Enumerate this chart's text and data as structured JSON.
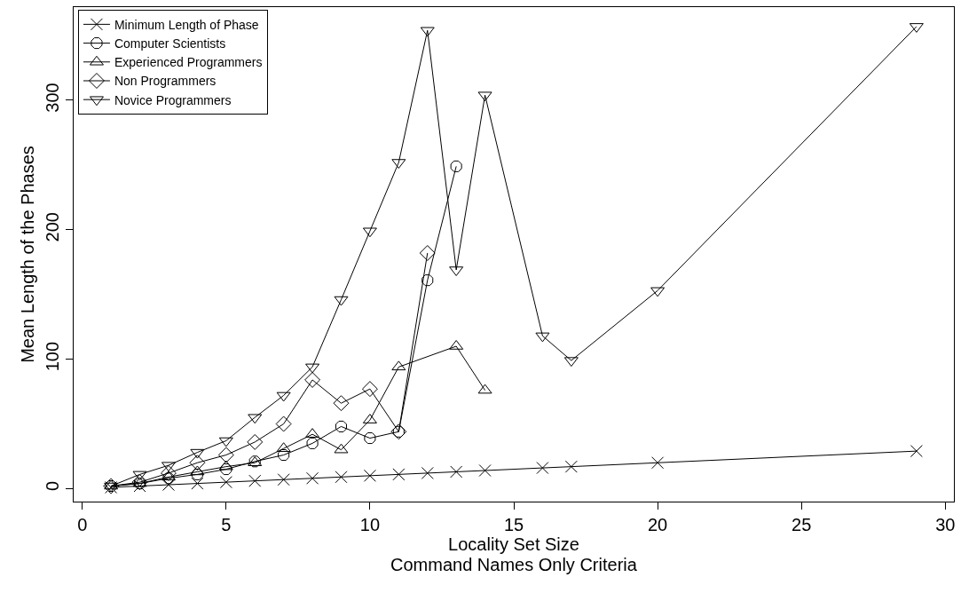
{
  "chart_data": {
    "type": "line",
    "xlabel": "Locality Set Size",
    "ylabel": "Mean Length of the Phases",
    "annotations": [
      "Command Names Only Criteria"
    ],
    "xlim": [
      -0.3,
      30.3
    ],
    "xticks": [
      0,
      5,
      10,
      15,
      20,
      25,
      30
    ],
    "ylim": [
      -10,
      372
    ],
    "yticks": [
      0,
      100,
      200,
      300
    ],
    "grid": false,
    "legend": "top left",
    "line_style": "solid",
    "series": [
      {
        "name": "Minimum Length of Phase",
        "color": "#000000",
        "marker": "cross",
        "x": [
          1,
          2,
          3,
          4,
          5,
          6,
          7,
          8,
          9,
          10,
          11,
          12,
          13,
          14,
          16,
          17,
          20,
          29
        ],
        "values": [
          1,
          2,
          3,
          4,
          5,
          6,
          7,
          8,
          9,
          10,
          11,
          12,
          13,
          14,
          16,
          17,
          20,
          29
        ]
      },
      {
        "name": "Computer Scientists",
        "color": "#000000",
        "marker": "circle",
        "x": [
          1,
          2,
          3,
          4,
          5,
          6,
          7,
          8,
          9,
          10,
          11,
          12,
          13
        ],
        "values": [
          2,
          4,
          8,
          11,
          15,
          21,
          26,
          35,
          48,
          39,
          44,
          161,
          249
        ]
      },
      {
        "name": "Experienced Programmers",
        "color": "#000000",
        "marker": "triangle",
        "x": [
          1,
          2,
          3,
          4,
          5,
          6,
          7,
          8,
          9,
          10,
          11,
          13,
          14
        ],
        "values": [
          2,
          4,
          9,
          13,
          17,
          20,
          31,
          42,
          30,
          53,
          94,
          110,
          76
        ]
      },
      {
        "name": "Non Programmers",
        "color": "#000000",
        "marker": "diamond",
        "x": [
          1,
          2,
          3,
          4,
          5,
          6,
          7,
          8,
          9,
          10,
          11,
          12
        ],
        "values": [
          2,
          5,
          12,
          20,
          26,
          36,
          50,
          84,
          66,
          77,
          44,
          182
        ]
      },
      {
        "name": "Novice Programmers",
        "color": "#000000",
        "marker": "triangle-down",
        "x": [
          1,
          2,
          3,
          4,
          5,
          6,
          7,
          8,
          9,
          10,
          11,
          12,
          13,
          14,
          16,
          17,
          20,
          29
        ],
        "values": [
          2,
          11,
          18,
          28,
          37,
          55,
          72,
          94,
          146,
          199,
          252,
          354,
          169,
          304,
          118,
          99,
          153,
          357
        ]
      }
    ]
  }
}
